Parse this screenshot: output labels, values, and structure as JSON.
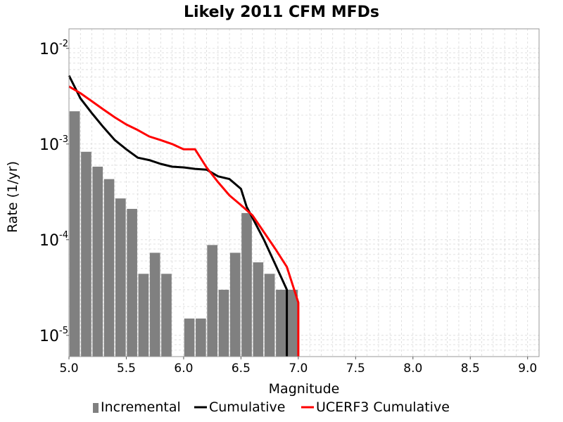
{
  "chart_data": {
    "type": "bar",
    "title": "Likely 2011 CFM MFDs",
    "xlabel": "Magnitude",
    "ylabel": "Rate (1/yr)",
    "x_scale": "linear",
    "y_scale": "log",
    "xlim": [
      5.0,
      9.1
    ],
    "ylim": [
      6e-06,
      0.016
    ],
    "grid": true,
    "x_ticks": [
      "5.0",
      "5.5",
      "6.0",
      "6.5",
      "7.0",
      "7.5",
      "8.0",
      "8.5",
      "9.0"
    ],
    "y_ticks": [
      {
        "value": 1e-05,
        "base": "10",
        "exp": "-5"
      },
      {
        "value": 0.0001,
        "base": "10",
        "exp": "-4"
      },
      {
        "value": 0.001,
        "base": "10",
        "exp": "-3"
      },
      {
        "value": 0.01,
        "base": "10",
        "exp": "-2"
      }
    ],
    "legend_position": "bottom",
    "series": [
      {
        "name": "Incremental",
        "kind": "bar",
        "color": "#808080",
        "x": [
          5.05,
          5.15,
          5.25,
          5.35,
          5.45,
          5.55,
          5.65,
          5.75,
          5.85,
          5.95,
          6.05,
          6.15,
          6.25,
          6.35,
          6.45,
          6.55,
          6.65,
          6.75,
          6.85,
          6.95
        ],
        "y": [
          0.0022,
          0.00083,
          0.00058,
          0.00043,
          0.00027,
          0.00021,
          4.4e-05,
          7.3e-05,
          4.4e-05,
          0.0,
          1.5e-05,
          1.5e-05,
          8.8e-05,
          3e-05,
          7.3e-05,
          0.00019,
          5.8e-05,
          4.4e-05,
          3e-05,
          3e-05
        ]
      },
      {
        "name": "Cumulative",
        "kind": "line",
        "color": "#000000",
        "x": [
          5.0,
          5.1,
          5.2,
          5.3,
          5.4,
          5.5,
          5.6,
          5.7,
          5.8,
          5.9,
          6.0,
          6.1,
          6.2,
          6.3,
          6.4,
          6.5,
          6.55,
          6.6,
          6.7,
          6.8,
          6.9,
          6.9
        ],
        "y": [
          0.0052,
          0.003,
          0.0021,
          0.0015,
          0.0011,
          0.00088,
          0.00072,
          0.00068,
          0.00062,
          0.00058,
          0.00057,
          0.00055,
          0.00054,
          0.00046,
          0.00043,
          0.00034,
          0.00022,
          0.00017,
          0.0001,
          5.5e-05,
          3e-05,
          1e-06
        ]
      },
      {
        "name": "UCERF3 Cumulative",
        "kind": "line",
        "color": "#ff0000",
        "x": [
          5.0,
          5.1,
          5.2,
          5.3,
          5.4,
          5.5,
          5.6,
          5.7,
          5.8,
          5.9,
          6.0,
          6.1,
          6.2,
          6.3,
          6.4,
          6.5,
          6.6,
          6.7,
          6.8,
          6.9,
          7.0,
          7.0
        ],
        "y": [
          0.004,
          0.0034,
          0.0028,
          0.0023,
          0.0019,
          0.0016,
          0.0014,
          0.0012,
          0.0011,
          0.001,
          0.00088,
          0.00088,
          0.00057,
          0.0004,
          0.00029,
          0.00023,
          0.00018,
          0.00012,
          8e-05,
          5.2e-05,
          2.2e-05,
          1e-06
        ]
      }
    ]
  }
}
